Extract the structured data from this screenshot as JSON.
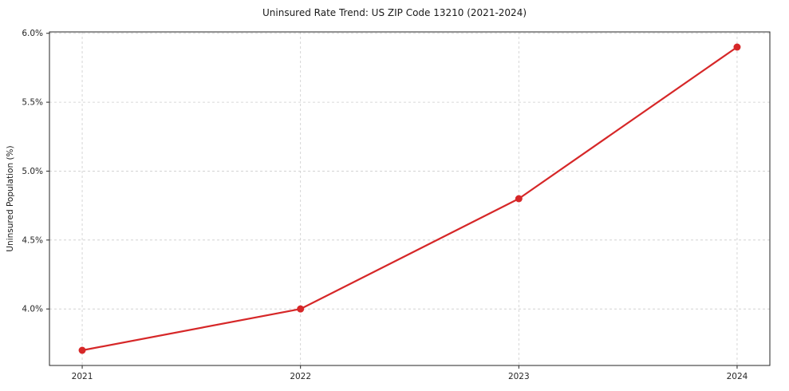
{
  "chart_data": {
    "type": "line",
    "title": "Uninsured Rate Trend: US ZIP Code 13210 (2021-2024)",
    "xlabel": "",
    "ylabel": "Uninsured Population (%)",
    "x": [
      2021,
      2022,
      2023,
      2024
    ],
    "x_tick_labels": [
      "2021",
      "2022",
      "2023",
      "2024"
    ],
    "values": [
      3.7,
      4.0,
      4.8,
      5.9
    ],
    "y_ticks": [
      4.0,
      4.5,
      5.0,
      5.5,
      6.0
    ],
    "y_tick_labels": [
      "4.0%",
      "4.5%",
      "5.0%",
      "5.5%",
      "6.0%"
    ],
    "xlim": [
      2020.85,
      2024.15
    ],
    "ylim": [
      3.59,
      6.01
    ],
    "grid": true,
    "grid_style": "dashed",
    "legend": "none",
    "line_color": "#d62728",
    "marker": "circle",
    "grid_color": "#cccccc",
    "axis_color": "#262626"
  }
}
